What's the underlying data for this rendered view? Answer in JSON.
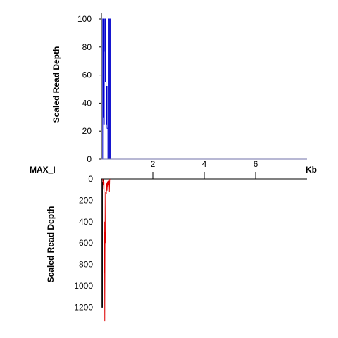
{
  "chart_data": [
    {
      "type": "line",
      "panel": "top",
      "ylabel": "Scaled Read Depth",
      "ylim": [
        0,
        100
      ],
      "yticks": [
        0,
        20,
        40,
        60,
        80,
        100
      ],
      "xlim": [
        0,
        8
      ],
      "series": [
        {
          "color": "#0000cc",
          "x": [
            0.0,
            0.05,
            0.05,
            0.06,
            0.06,
            0.07,
            0.07,
            0.08,
            0.08,
            0.09,
            0.09,
            0.11,
            0.11,
            0.13,
            0.13,
            0.15,
            0.15,
            0.18,
            0.18,
            0.2,
            0.2,
            0.22,
            0.22,
            0.25,
            0.25,
            0.27,
            0.27,
            0.29,
            0.29,
            0.3,
            0.3,
            0.33,
            0.33,
            0.34,
            0.34,
            8.0
          ],
          "y": [
            0,
            0,
            100,
            100,
            98,
            98,
            30,
            30,
            100,
            100,
            25,
            25,
            77,
            77,
            100,
            100,
            55,
            55,
            25,
            25,
            52,
            52,
            22,
            22,
            0,
            0,
            100,
            100,
            100,
            100,
            0,
            0,
            100,
            100,
            0,
            0
          ]
        }
      ]
    },
    {
      "type": "line",
      "panel": "bottom",
      "ylabel": "Scaled Read Depth",
      "ylim": [
        0,
        1330
      ],
      "yticks": [
        0,
        200,
        400,
        600,
        800,
        1000,
        1200
      ],
      "xlim": [
        0,
        8
      ],
      "series": [
        {
          "color": "#000000",
          "x": [
            0.0,
            0.02,
            0.02,
            0.04,
            0.04,
            0.06,
            0.06,
            0.08,
            0.08,
            8.0
          ],
          "y": [
            0,
            0,
            1200,
            1200,
            30,
            30,
            50,
            50,
            0,
            0
          ]
        },
        {
          "color": "#dd0000",
          "x": [
            0.05,
            0.07,
            0.08,
            0.09,
            0.1,
            0.11,
            0.12,
            0.13,
            0.14,
            0.15,
            0.16,
            0.17,
            0.18,
            0.19,
            0.2,
            0.21,
            0.22,
            0.23,
            0.24,
            0.25,
            0.26,
            0.27,
            0.28,
            0.29,
            0.3,
            0.31,
            0.32,
            0.33
          ],
          "y": [
            0,
            60,
            20,
            100,
            30,
            880,
            400,
            1330,
            500,
            600,
            120,
            200,
            80,
            140,
            60,
            40,
            110,
            30,
            70,
            20,
            90,
            10,
            40,
            60,
            20,
            120,
            10,
            0
          ]
        }
      ]
    }
  ],
  "shared_axis": {
    "sample_label": "MAX_I",
    "unit_label": "Kb",
    "xticks": [
      2,
      4,
      6
    ]
  }
}
